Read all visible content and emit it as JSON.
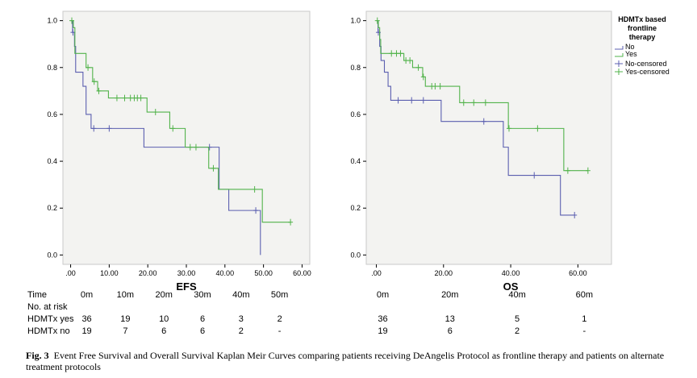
{
  "chart_data": [
    {
      "type": "line",
      "title": "EFS",
      "xlabel": "",
      "ylabel": "",
      "xlim": [
        -2,
        62
      ],
      "ylim": [
        -0.04,
        1.04
      ],
      "x_ticks": [
        ".00",
        "10.00",
        "20.00",
        "30.00",
        "40.00",
        "50.00",
        "60.00"
      ],
      "x_tick_values": [
        0,
        10,
        20,
        30,
        40,
        50,
        60
      ],
      "y_ticks": [
        "0.0",
        "0.2",
        "0.4",
        "0.6",
        "0.8",
        "1.0"
      ],
      "y_tick_values": [
        0,
        0.2,
        0.4,
        0.6,
        0.8,
        1.0
      ],
      "series": [
        {
          "name": "No",
          "color": "#5b5fb0",
          "steps": [
            [
              0,
              1.0
            ],
            [
              0.5,
              0.95
            ],
            [
              1,
              0.89
            ],
            [
              1.3,
              0.78
            ],
            [
              2.8,
              0.78
            ],
            [
              3.2,
              0.72
            ],
            [
              4,
              0.6
            ],
            [
              5.3,
              0.54
            ],
            [
              19,
              0.54
            ],
            [
              19,
              0.46
            ],
            [
              37,
              0.46
            ],
            [
              38.5,
              0.28
            ],
            [
              41,
              0.28
            ],
            [
              41,
              0.19
            ],
            [
              49,
              0.19
            ],
            [
              49.2,
              0.0
            ]
          ],
          "censored": [
            [
              0.6,
              0.95
            ],
            [
              10,
              0.54
            ],
            [
              6,
              0.54
            ],
            [
              36,
              0.46
            ],
            [
              48,
              0.19
            ]
          ]
        },
        {
          "name": "Yes",
          "color": "#52b34b",
          "steps": [
            [
              0,
              1.0
            ],
            [
              0.7,
              0.97
            ],
            [
              1.1,
              0.86
            ],
            [
              3.8,
              0.86
            ],
            [
              4,
              0.8
            ],
            [
              5.5,
              0.8
            ],
            [
              5.7,
              0.74
            ],
            [
              6.7,
              0.74
            ],
            [
              7,
              0.7
            ],
            [
              9.6,
              0.7
            ],
            [
              9.8,
              0.67
            ],
            [
              19.5,
              0.67
            ],
            [
              19.8,
              0.61
            ],
            [
              25.5,
              0.61
            ],
            [
              25.7,
              0.54
            ],
            [
              29.5,
              0.54
            ],
            [
              29.7,
              0.46
            ],
            [
              35.6,
              0.46
            ],
            [
              35.8,
              0.37
            ],
            [
              38,
              0.37
            ],
            [
              38.3,
              0.28
            ],
            [
              47.5,
              0.28
            ],
            [
              49.5,
              0.28
            ],
            [
              49.7,
              0.14
            ],
            [
              57,
              0.14
            ]
          ],
          "censored": [
            [
              0.3,
              1.0
            ],
            [
              4.5,
              0.8
            ],
            [
              6.1,
              0.74
            ],
            [
              7.3,
              0.7
            ],
            [
              12,
              0.67
            ],
            [
              14,
              0.67
            ],
            [
              15.5,
              0.67
            ],
            [
              16.5,
              0.67
            ],
            [
              17.3,
              0.67
            ],
            [
              18.2,
              0.67
            ],
            [
              22,
              0.61
            ],
            [
              26.5,
              0.54
            ],
            [
              31,
              0.46
            ],
            [
              32.5,
              0.46
            ],
            [
              37,
              0.37
            ],
            [
              47.7,
              0.28
            ],
            [
              57,
              0.14
            ]
          ]
        }
      ]
    },
    {
      "type": "line",
      "title": "OS",
      "xlabel": "",
      "ylabel": "",
      "xlim": [
        -3,
        70
      ],
      "ylim": [
        -0.04,
        1.04
      ],
      "x_ticks": [
        ".00",
        "20.00",
        "40.00",
        "60.00"
      ],
      "x_tick_values": [
        0,
        20,
        40,
        60
      ],
      "y_ticks": [
        "0.0",
        "0.2",
        "0.4",
        "0.6",
        "0.8",
        "1.0"
      ],
      "y_tick_values": [
        0,
        0.2,
        0.4,
        0.6,
        0.8,
        1.0
      ],
      "series": [
        {
          "name": "No",
          "color": "#5b5fb0",
          "steps": [
            [
              0,
              1.0
            ],
            [
              0.5,
              0.95
            ],
            [
              1,
              0.89
            ],
            [
              1.4,
              0.83
            ],
            [
              2.4,
              0.78
            ],
            [
              3.5,
              0.72
            ],
            [
              4.3,
              0.66
            ],
            [
              19,
              0.66
            ],
            [
              19.3,
              0.57
            ],
            [
              37.5,
              0.57
            ],
            [
              37.8,
              0.46
            ],
            [
              39,
              0.46
            ],
            [
              39.3,
              0.34
            ],
            [
              54.5,
              0.34
            ],
            [
              54.8,
              0.17
            ],
            [
              59,
              0.17
            ]
          ],
          "censored": [
            [
              0.6,
              0.95
            ],
            [
              6.5,
              0.66
            ],
            [
              10.5,
              0.66
            ],
            [
              14,
              0.66
            ],
            [
              32,
              0.57
            ],
            [
              47,
              0.34
            ],
            [
              59,
              0.17
            ]
          ]
        },
        {
          "name": "Yes",
          "color": "#52b34b",
          "steps": [
            [
              0,
              1.0
            ],
            [
              0.6,
              0.97
            ],
            [
              1,
              0.92
            ],
            [
              1.3,
              0.86
            ],
            [
              8,
              0.86
            ],
            [
              8.2,
              0.83
            ],
            [
              10.5,
              0.83
            ],
            [
              10.8,
              0.8
            ],
            [
              13.5,
              0.8
            ],
            [
              13.8,
              0.76
            ],
            [
              14.3,
              0.76
            ],
            [
              14.6,
              0.72
            ],
            [
              24.5,
              0.72
            ],
            [
              24.8,
              0.65
            ],
            [
              39,
              0.65
            ],
            [
              39.3,
              0.54
            ],
            [
              55.5,
              0.54
            ],
            [
              55.8,
              0.36
            ],
            [
              63,
              0.36
            ]
          ],
          "censored": [
            [
              0.3,
              1.0
            ],
            [
              4.5,
              0.86
            ],
            [
              6,
              0.86
            ],
            [
              7.2,
              0.86
            ],
            [
              8.8,
              0.83
            ],
            [
              10,
              0.83
            ],
            [
              12.5,
              0.8
            ],
            [
              14,
              0.76
            ],
            [
              16.5,
              0.72
            ],
            [
              17.5,
              0.72
            ],
            [
              19,
              0.72
            ],
            [
              26,
              0.65
            ],
            [
              29,
              0.65
            ],
            [
              32.5,
              0.65
            ],
            [
              39.5,
              0.54
            ],
            [
              48,
              0.54
            ],
            [
              57,
              0.36
            ],
            [
              63,
              0.36
            ]
          ]
        }
      ],
      "legend": {
        "title": "HDMTx based frontline therapy",
        "title_lines": [
          "HDMTx based",
          "frontline",
          "therapy"
        ],
        "entries": [
          "No",
          "Yes",
          "No-censored",
          "Yes-censored"
        ],
        "position": "top-right"
      }
    }
  ],
  "risk_table": {
    "time_label": "Time",
    "risk_label": "No. at risk",
    "efs_times": [
      "0m",
      "10m",
      "20m",
      "30m",
      "40m",
      "50m"
    ],
    "os_times": [
      "0m",
      "20m",
      "40m",
      "60m"
    ],
    "rows": [
      {
        "label": "HDMTx yes",
        "efs": [
          "36",
          "19",
          "10",
          "6",
          "3",
          "2"
        ],
        "os": [
          "36",
          "13",
          "5",
          "1"
        ]
      },
      {
        "label": "HDMTx no",
        "efs": [
          "19",
          "7",
          "6",
          "6",
          "2",
          "-"
        ],
        "os": [
          "19",
          "6",
          "2",
          "-"
        ]
      }
    ]
  },
  "caption": {
    "label": "Fig. 3",
    "text": "Event Free Survival and Overall Survival Kaplan Meir Curves comparing patients receiving DeAngelis Protocol as frontline therapy and patients on alternate treatment protocols"
  }
}
